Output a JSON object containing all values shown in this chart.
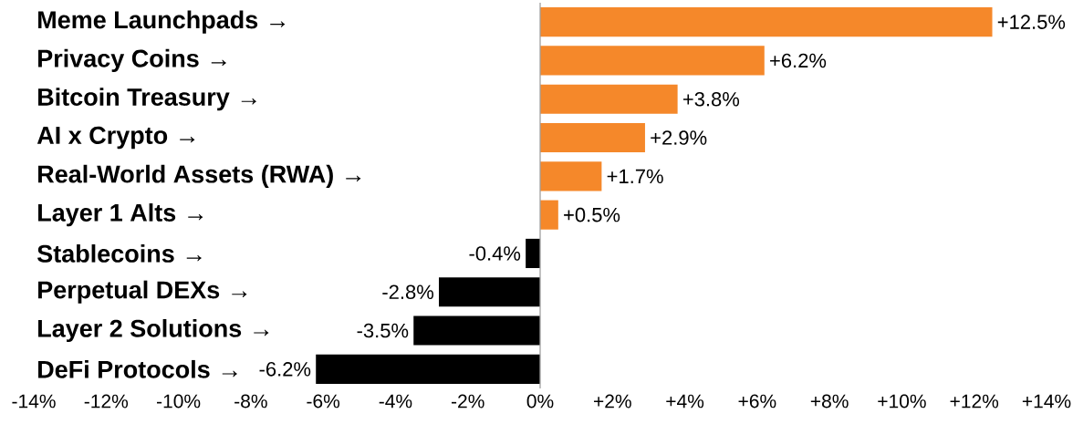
{
  "chart_data": {
    "type": "bar",
    "orientation": "horizontal",
    "categories": [
      "Meme Launchpads →",
      "Privacy Coins →",
      "Bitcoin Treasury →",
      "AI x Crypto →",
      "Real-World Assets (RWA) →",
      "Layer 1 Alts →",
      "Stablecoins →",
      "Perpetual DEXs →",
      "Layer 2 Solutions →",
      "DeFi Protocols →"
    ],
    "values": [
      12.5,
      6.2,
      3.8,
      2.9,
      1.7,
      0.5,
      -0.4,
      -2.8,
      -3.5,
      -6.2
    ],
    "colors": [
      "#f5882a",
      "#f5882a",
      "#f5882a",
      "#f5882a",
      "#f5882a",
      "#f5882a",
      "#000000",
      "#000000",
      "#000000",
      "#000000"
    ],
    "value_labels": [
      "+12.5%",
      "+6.2%",
      "+3.8%",
      "+2.9%",
      "+1.7%",
      "+0.5%",
      "-0.4%",
      "-2.8%",
      "-3.5%",
      "-6.2%"
    ],
    "xlim": [
      -14,
      14
    ],
    "xticks": [
      {
        "value": -14,
        "label": "-14%"
      },
      {
        "value": -12,
        "label": "-12%"
      },
      {
        "value": -10,
        "label": "-10%"
      },
      {
        "value": -8,
        "label": "-8%"
      },
      {
        "value": -6,
        "label": "-6%"
      },
      {
        "value": -4,
        "label": "-4%"
      },
      {
        "value": -2,
        "label": "-2%"
      },
      {
        "value": 0,
        "label": "0%"
      },
      {
        "value": 2,
        "label": "+2%"
      },
      {
        "value": 4,
        "label": "+4%"
      },
      {
        "value": 6,
        "label": "+6%"
      },
      {
        "value": 8,
        "label": "+8%"
      },
      {
        "value": 10,
        "label": "+10%"
      },
      {
        "value": 12,
        "label": "+12%"
      },
      {
        "value": 14,
        "label": "+14%"
      }
    ],
    "ref_lines": [
      {
        "axis": "x",
        "value": 0,
        "color": "#a0a0a0"
      }
    ]
  }
}
